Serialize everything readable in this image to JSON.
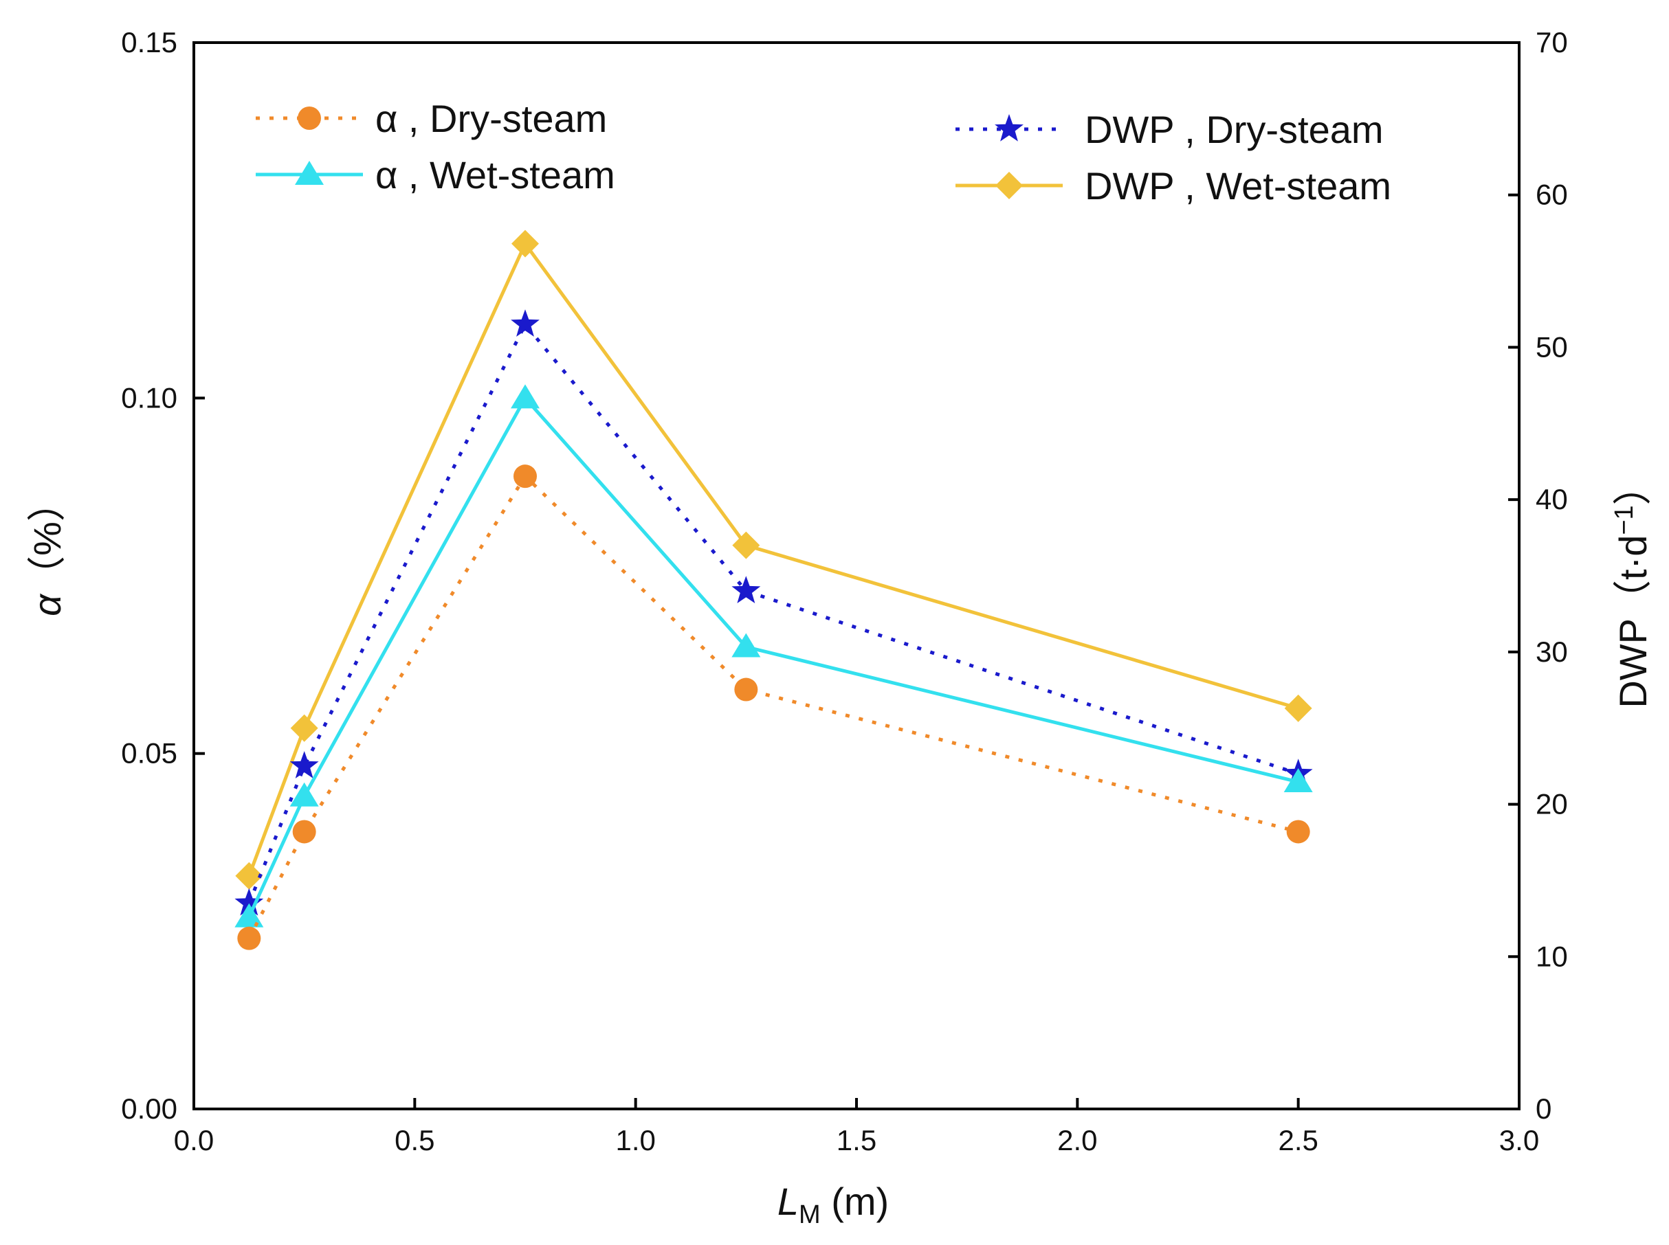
{
  "chart_data": {
    "type": "line",
    "title": "",
    "xlabel_main": "L",
    "xlabel_sub": "M",
    "xlabel_unit": " (m)",
    "ylabel_left_main": "α",
    "ylabel_left_unit": "（%）",
    "ylabel_right_main": "DWP",
    "ylabel_right_unit": "（t·d",
    "ylabel_right_sup": "−1",
    "ylabel_right_close": "）",
    "xlim": [
      0,
      3.0
    ],
    "ylim_left": [
      0,
      0.15
    ],
    "ylim_right": [
      0,
      70
    ],
    "x_ticks": [
      "0.0",
      "0.5",
      "1.0",
      "1.5",
      "2.0",
      "2.5",
      "3.0"
    ],
    "x_tick_values": [
      0,
      0.5,
      1.0,
      1.5,
      2.0,
      2.5,
      3.0
    ],
    "y_left_ticks": [
      "0.00",
      "0.05",
      "0.10",
      "0.15"
    ],
    "y_left_tick_values": [
      0,
      0.05,
      0.1,
      0.15
    ],
    "y_right_ticks": [
      "0",
      "10",
      "20",
      "30",
      "40",
      "50",
      "60",
      "70"
    ],
    "y_right_tick_values": [
      0,
      10,
      20,
      30,
      40,
      50,
      60,
      70
    ],
    "x": [
      0.125,
      0.25,
      0.75,
      1.25,
      2.5
    ],
    "series": [
      {
        "name": "α , Dry-steam",
        "axis": "left",
        "values": [
          0.024,
          0.039,
          0.089,
          0.059,
          0.039
        ],
        "color": "#F08A2A",
        "dash": "dotted",
        "marker": "circle"
      },
      {
        "name": "α , Wet-steam",
        "axis": "left",
        "values": [
          0.027,
          0.044,
          0.1,
          0.065,
          0.046
        ],
        "color": "#33E0EE",
        "dash": "solid",
        "marker": "triangle"
      },
      {
        "name": "DWP , Dry-steam",
        "axis": "right",
        "values": [
          13.5,
          22.5,
          51.5,
          34.0,
          22.0
        ],
        "color": "#1A1ACC",
        "dash": "dotted",
        "marker": "star"
      },
      {
        "name": "DWP , Wet-steam",
        "axis": "right",
        "values": [
          15.3,
          25.0,
          56.8,
          37.0,
          26.3
        ],
        "color": "#F2C23A",
        "dash": "solid",
        "marker": "diamond"
      }
    ],
    "legend": [
      {
        "series": 0,
        "position": "top-left"
      },
      {
        "series": 1,
        "position": "top-left"
      },
      {
        "series": 2,
        "position": "top-right"
      },
      {
        "series": 3,
        "position": "top-right"
      }
    ],
    "grid": false
  }
}
